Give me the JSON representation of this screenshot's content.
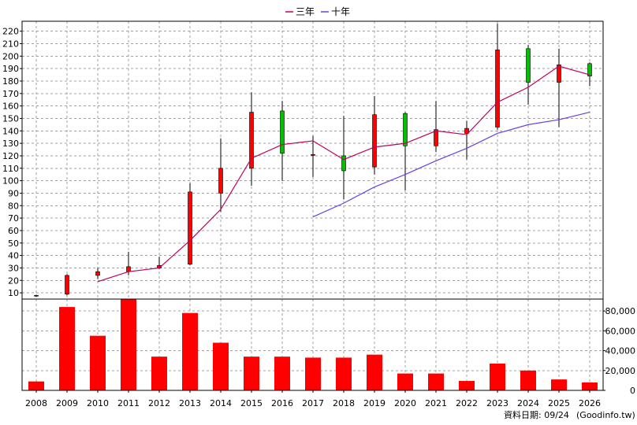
{
  "colors": {
    "up": "#ff0000",
    "down": "#00c000",
    "ma3": "#c00060",
    "ma10": "#6a40e0",
    "volume": "#ff0000"
  },
  "legend": {
    "ma3": "三年",
    "ma10": "十年"
  },
  "footer": {
    "date_label": "資料日期: 09/24",
    "source": "(Goodinfo.tw)"
  },
  "chart_data": [
    {
      "type": "candlestick",
      "ylim": [
        5,
        228
      ],
      "y_ticks": [
        10,
        20,
        30,
        40,
        50,
        60,
        70,
        80,
        90,
        100,
        110,
        120,
        130,
        140,
        150,
        160,
        170,
        180,
        190,
        200,
        210,
        220
      ],
      "grid": true,
      "legend_position": "top-center",
      "x": [
        "2008",
        "2009",
        "2010",
        "2011",
        "2012",
        "2013",
        "2014",
        "2015",
        "2016",
        "2017",
        "2018",
        "2019",
        "2020",
        "2021",
        "2022",
        "2023",
        "2024",
        "2025",
        "2026"
      ],
      "candles": [
        {
          "open": 7.5,
          "close": 8,
          "high": 8.5,
          "low": 7
        },
        {
          "open": 9,
          "close": 24,
          "high": 25,
          "low": 8
        },
        {
          "open": 24,
          "close": 27,
          "high": 30,
          "low": 21
        },
        {
          "open": 27,
          "close": 31,
          "high": 43,
          "low": 24
        },
        {
          "open": 30,
          "close": 32,
          "high": 39,
          "low": 29
        },
        {
          "open": 33,
          "close": 91,
          "high": 98,
          "low": 32
        },
        {
          "open": 90,
          "close": 110,
          "high": 134,
          "low": 75
        },
        {
          "open": 110,
          "close": 155,
          "high": 171,
          "low": 96
        },
        {
          "open": 156,
          "close": 122,
          "high": 164,
          "low": 100
        },
        {
          "open": 121,
          "close": 121,
          "high": 136,
          "low": 103
        },
        {
          "open": 120,
          "close": 108,
          "high": 152,
          "low": 85
        },
        {
          "open": 111,
          "close": 153,
          "high": 168,
          "low": 105
        },
        {
          "open": 154,
          "close": 128,
          "high": 155,
          "low": 92
        },
        {
          "open": 128,
          "close": 141,
          "high": 164,
          "low": 123
        },
        {
          "open": 138,
          "close": 142,
          "high": 148,
          "low": 117
        },
        {
          "open": 143,
          "close": 205,
          "high": 226,
          "low": 141
        },
        {
          "open": 206,
          "close": 179,
          "high": 209,
          "low": 161
        },
        {
          "open": 179,
          "close": 193,
          "high": 206,
          "low": 143
        },
        {
          "open": 194,
          "close": 184,
          "high": 195,
          "low": 176
        }
      ],
      "series": [
        {
          "name": "三年",
          "key": "ma3",
          "values": [
            null,
            null,
            19,
            27,
            30,
            52,
            77,
            118,
            129,
            132,
            117,
            127,
            130,
            140,
            137,
            163,
            175,
            192,
            185
          ]
        },
        {
          "name": "十年",
          "key": "ma10",
          "values": [
            null,
            null,
            null,
            null,
            null,
            null,
            null,
            null,
            null,
            71,
            82,
            95,
            105,
            116,
            126,
            138,
            145,
            149,
            155
          ]
        }
      ]
    },
    {
      "type": "bar",
      "ylim": [
        0,
        92000
      ],
      "y_ticks": [
        0,
        20000,
        40000,
        60000,
        80000
      ],
      "y_tick_labels": [
        "0",
        "20,000",
        "40,000",
        "60,000",
        "80,000"
      ],
      "grid": true,
      "categories": [
        "2008",
        "2009",
        "2010",
        "2011",
        "2012",
        "2013",
        "2014",
        "2015",
        "2016",
        "2017",
        "2018",
        "2019",
        "2020",
        "2021",
        "2022",
        "2023",
        "2024",
        "2025",
        "2026"
      ],
      "values": [
        9000,
        84000,
        55000,
        92000,
        34000,
        78000,
        48000,
        34000,
        34000,
        33000,
        33000,
        36000,
        17000,
        17000,
        9500,
        27000,
        20000,
        11000,
        8000
      ]
    }
  ]
}
